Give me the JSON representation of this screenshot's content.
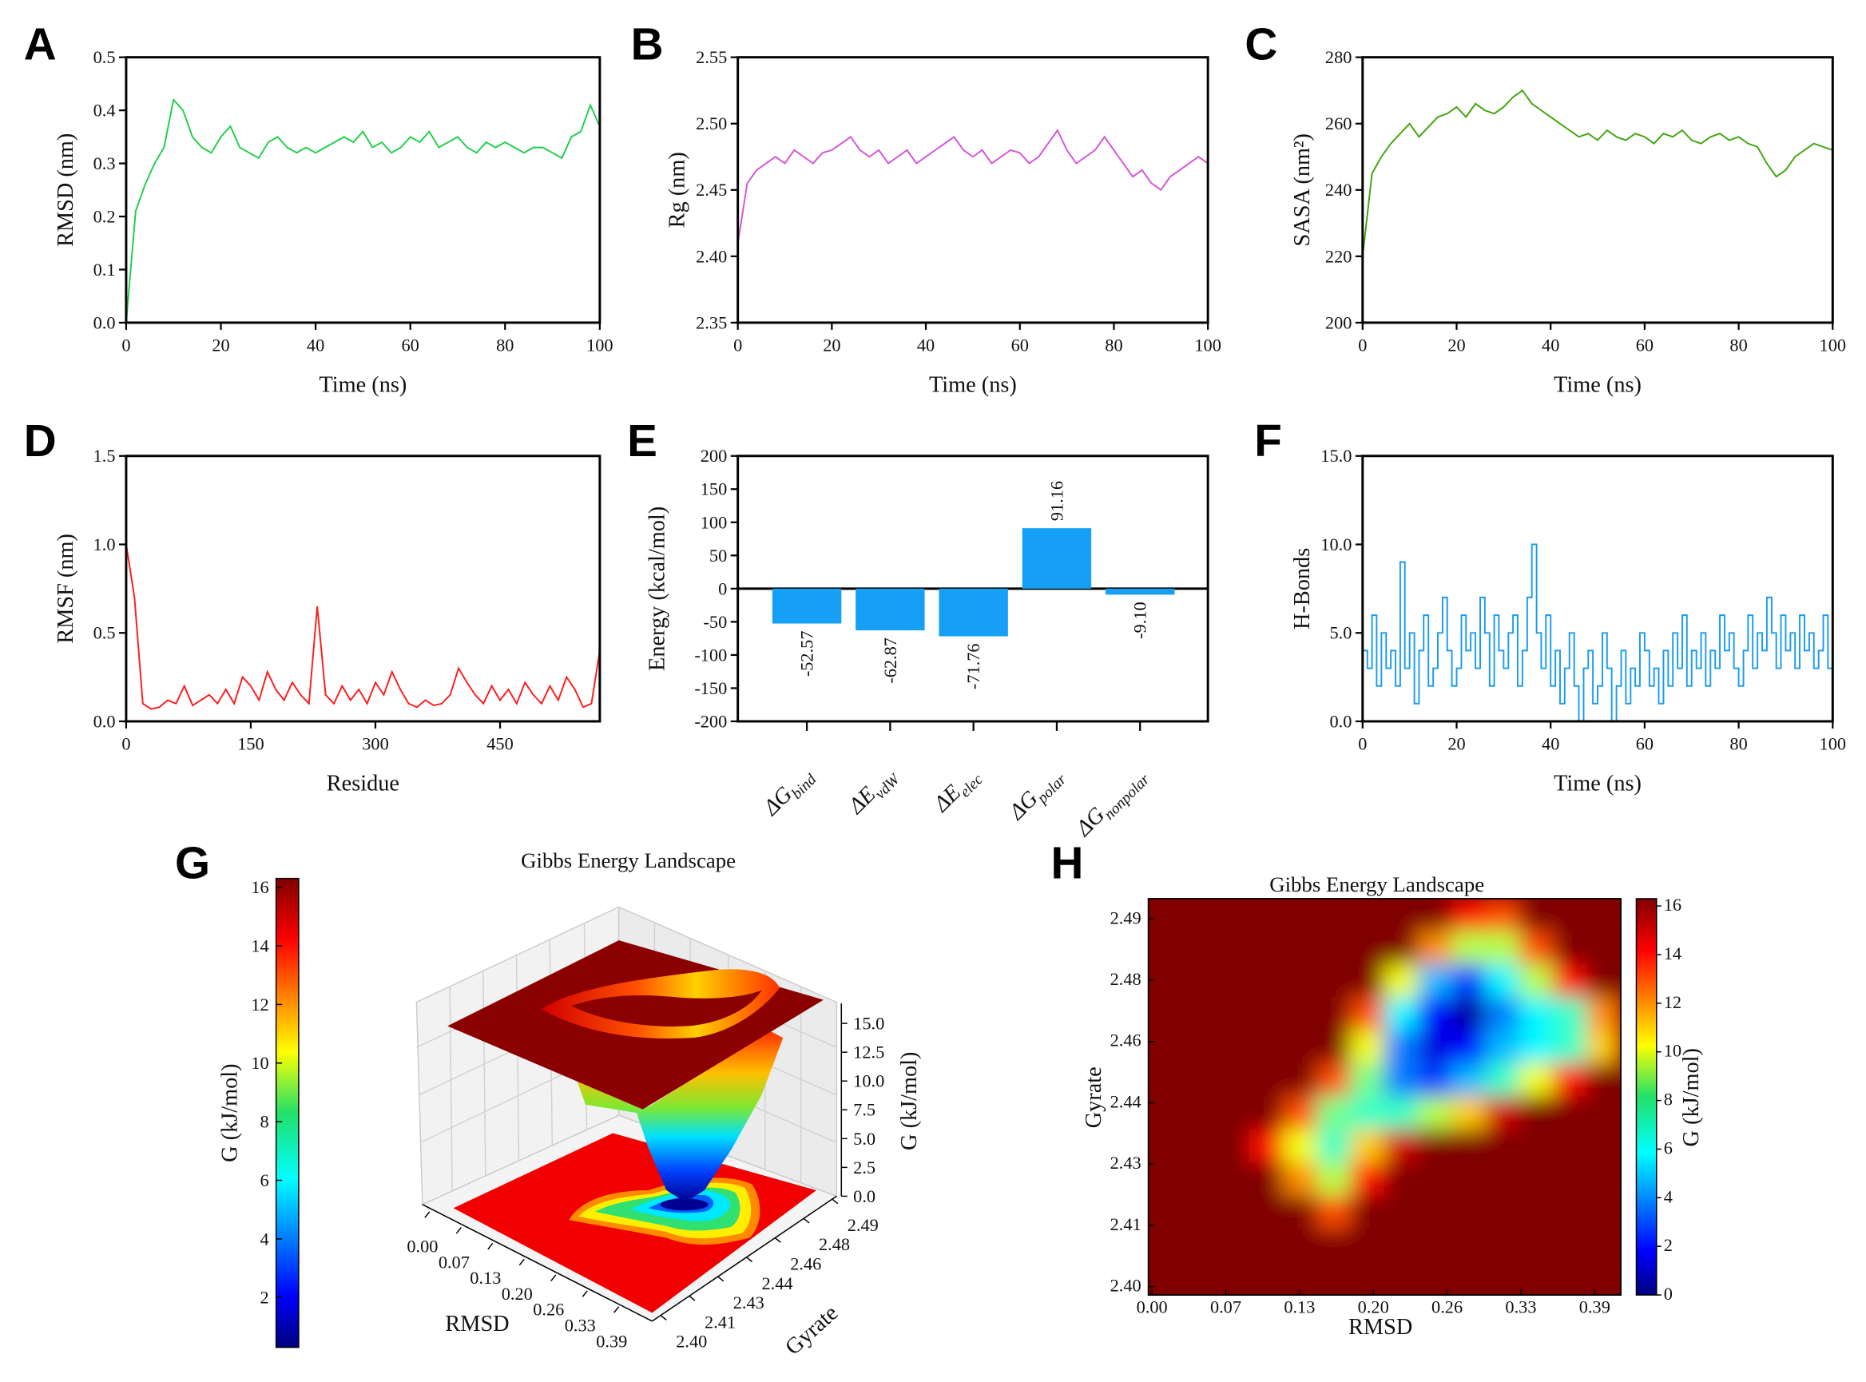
{
  "panel_letters": [
    "A",
    "B",
    "C",
    "D",
    "E",
    "F",
    "G",
    "H"
  ],
  "colors": {
    "rmsd": "#1fce4a",
    "rg": "#d452d8",
    "sasa": "#3ea50c",
    "rmsf": "#ff1a1a",
    "energy": "#16a0f5",
    "hbond": "#1a9bf0"
  },
  "chart_data": [
    {
      "id": "A",
      "type": "line",
      "xlabel": "Time (ns)",
      "ylabel": "RMSD (nm)",
      "xlim": [
        0,
        100
      ],
      "ylim": [
        0,
        0.5
      ],
      "xticks": [
        0,
        20,
        40,
        60,
        80,
        100
      ],
      "yticks": [
        "0.0",
        "0.1",
        "0.2",
        "0.3",
        "0.4",
        "0.5"
      ],
      "x_range": [
        0,
        100
      ],
      "values": [
        0.0,
        0.21,
        0.26,
        0.3,
        0.33,
        0.42,
        0.4,
        0.35,
        0.33,
        0.32,
        0.35,
        0.37,
        0.33,
        0.32,
        0.31,
        0.34,
        0.35,
        0.33,
        0.32,
        0.33,
        0.32,
        0.33,
        0.34,
        0.35,
        0.34,
        0.36,
        0.33,
        0.34,
        0.32,
        0.33,
        0.35,
        0.34,
        0.36,
        0.33,
        0.34,
        0.35,
        0.33,
        0.32,
        0.34,
        0.33,
        0.34,
        0.33,
        0.32,
        0.33,
        0.33,
        0.32,
        0.31,
        0.35,
        0.36,
        0.41,
        0.37
      ]
    },
    {
      "id": "B",
      "type": "line",
      "xlabel": "Time (ns)",
      "ylabel": "Rg (nm)",
      "xlim": [
        0,
        100
      ],
      "ylim": [
        2.35,
        2.55
      ],
      "xticks": [
        0,
        20,
        40,
        60,
        80,
        100
      ],
      "yticks": [
        "2.35",
        "2.40",
        "2.45",
        "2.50",
        "2.55"
      ],
      "x_range": [
        0,
        100
      ],
      "values": [
        2.41,
        2.455,
        2.465,
        2.47,
        2.475,
        2.47,
        2.48,
        2.475,
        2.47,
        2.478,
        2.48,
        2.485,
        2.49,
        2.48,
        2.475,
        2.48,
        2.47,
        2.475,
        2.48,
        2.47,
        2.475,
        2.48,
        2.485,
        2.49,
        2.48,
        2.475,
        2.48,
        2.47,
        2.475,
        2.48,
        2.478,
        2.47,
        2.475,
        2.485,
        2.495,
        2.48,
        2.47,
        2.475,
        2.48,
        2.49,
        2.48,
        2.47,
        2.46,
        2.465,
        2.455,
        2.45,
        2.46,
        2.465,
        2.47,
        2.475,
        2.47
      ]
    },
    {
      "id": "C",
      "type": "line",
      "xlabel": "Time (ns)",
      "ylabel": "SASA (nm²)",
      "xlim": [
        0,
        100
      ],
      "ylim": [
        200,
        280
      ],
      "xticks": [
        0,
        20,
        40,
        60,
        80,
        100
      ],
      "yticks": [
        "200",
        "220",
        "240",
        "260",
        "280"
      ],
      "x_range": [
        0,
        100
      ],
      "values": [
        220,
        245,
        250,
        254,
        257,
        260,
        256,
        259,
        262,
        263,
        265,
        262,
        266,
        264,
        263,
        265,
        268,
        270,
        266,
        264,
        262,
        260,
        258,
        256,
        257,
        255,
        258,
        256,
        255,
        257,
        256,
        254,
        257,
        256,
        258,
        255,
        254,
        256,
        257,
        255,
        256,
        254,
        253,
        248,
        244,
        246,
        250,
        252,
        254,
        253,
        252
      ]
    },
    {
      "id": "D",
      "type": "line",
      "xlabel": "Residue",
      "ylabel": "RMSF (nm)",
      "xlim": [
        0,
        570
      ],
      "ylim": [
        0,
        1.5
      ],
      "xticks": [
        0,
        150,
        300,
        450
      ],
      "yticks": [
        "0.0",
        "0.5",
        "1.0",
        "1.5"
      ],
      "x_range": [
        0,
        570
      ],
      "values": [
        1.0,
        0.7,
        0.1,
        0.07,
        0.08,
        0.12,
        0.1,
        0.2,
        0.09,
        0.12,
        0.15,
        0.1,
        0.18,
        0.1,
        0.25,
        0.2,
        0.12,
        0.28,
        0.18,
        0.12,
        0.22,
        0.15,
        0.1,
        0.65,
        0.15,
        0.1,
        0.2,
        0.12,
        0.18,
        0.1,
        0.22,
        0.15,
        0.28,
        0.18,
        0.1,
        0.08,
        0.12,
        0.09,
        0.1,
        0.15,
        0.3,
        0.22,
        0.15,
        0.1,
        0.2,
        0.12,
        0.18,
        0.1,
        0.22,
        0.15,
        0.1,
        0.2,
        0.12,
        0.25,
        0.18,
        0.08,
        0.1,
        0.4
      ]
    },
    {
      "id": "E",
      "type": "bar",
      "ylabel": "Energy (kcal/mol)",
      "ylim": [
        -200,
        200
      ],
      "yticks": [
        "-200",
        "-150",
        "-100",
        "-50",
        "0",
        "50",
        "100",
        "150",
        "200"
      ],
      "categories": [
        {
          "main": "ΔG",
          "sub": "bind"
        },
        {
          "main": "ΔE",
          "sub": "vdW"
        },
        {
          "main": "ΔE",
          "sub": "elec"
        },
        {
          "main": "ΔG",
          "sub": "polar"
        },
        {
          "main": "ΔG",
          "sub": "nonpolar"
        }
      ],
      "values": [
        -52.57,
        -62.87,
        -71.76,
        91.16,
        -9.1
      ],
      "labels": [
        "-52.57",
        "-62.87",
        "-71.76",
        "91.16",
        "-9.10"
      ]
    },
    {
      "id": "F",
      "type": "line",
      "xlabel": "Time (ns)",
      "ylabel": "H-Bonds",
      "xlim": [
        0,
        100
      ],
      "ylim": [
        0,
        15
      ],
      "xticks": [
        0,
        20,
        40,
        60,
        80,
        100
      ],
      "yticks": [
        "0.0",
        "5.0",
        "10.0",
        "15.0"
      ],
      "x_range": [
        0,
        100
      ],
      "values": [
        4,
        3,
        6,
        2,
        5,
        3,
        4,
        2,
        9,
        3,
        5,
        1,
        4,
        6,
        2,
        3,
        5,
        7,
        4,
        2,
        3,
        6,
        4,
        5,
        3,
        7,
        5,
        2,
        6,
        4,
        3,
        5,
        6,
        2,
        4,
        7,
        10,
        5,
        3,
        6,
        2,
        4,
        1,
        3,
        5,
        2,
        0,
        3,
        4,
        1,
        2,
        5,
        3,
        0,
        2,
        4,
        1,
        3,
        2,
        5,
        4,
        2,
        3,
        1,
        4,
        2,
        5,
        3,
        6,
        2,
        4,
        3,
        5,
        2,
        4,
        3,
        6,
        4,
        5,
        3,
        2,
        4,
        6,
        3,
        5,
        4,
        7,
        5,
        3,
        6,
        4,
        5,
        3,
        6,
        4,
        5,
        3,
        4,
        6,
        3,
        4
      ]
    },
    {
      "id": "G",
      "type": "surface3d",
      "title": "Gibbs Energy Landscape",
      "xlabel": "RMSD",
      "ylabel": "Gyrate",
      "zlabel": "G (kJ/mol)",
      "xticks": [
        "0.00",
        "0.07",
        "0.13",
        "0.20",
        "0.26",
        "0.33",
        "0.39"
      ],
      "yticks": [
        "2.40",
        "2.41",
        "2.43",
        "2.44",
        "2.46",
        "2.48",
        "2.49"
      ],
      "zticks": [
        "0.0",
        "2.5",
        "5.0",
        "7.5",
        "10.0",
        "12.5",
        "15.0"
      ],
      "colorbar": {
        "label": "G (kJ/mol)",
        "ticks": [
          "2",
          "4",
          "6",
          "8",
          "10",
          "12",
          "14",
          "16"
        ],
        "range": [
          0.3,
          16.3
        ]
      }
    },
    {
      "id": "H",
      "type": "heatmap",
      "title": "Gibbs Energy Landscape",
      "xlabel": "RMSD",
      "ylabel": "Gyrate",
      "xticks": [
        "0.00",
        "0.07",
        "0.13",
        "0.20",
        "0.26",
        "0.33",
        "0.39"
      ],
      "yticks": [
        "2.49",
        "2.48",
        "2.46",
        "2.44",
        "2.43",
        "2.41",
        "2.40"
      ],
      "x_range": [
        0,
        0.4
      ],
      "y_range": [
        2.4,
        2.492
      ],
      "colorbar": {
        "label": "G (kJ/mol)",
        "ticks": [
          "0",
          "2",
          "4",
          "6",
          "8",
          "10",
          "12",
          "14",
          "16"
        ],
        "range": [
          0,
          16.3
        ]
      },
      "matrix_rows_top_to_bottom": [
        [
          16.3,
          16.3,
          16.3,
          16.3,
          16.3,
          16.3,
          16.3,
          16.3,
          16.3,
          14,
          13,
          16.3,
          16.3,
          16.3
        ],
        [
          16.3,
          16.3,
          16.3,
          16.3,
          16.3,
          16.3,
          16.3,
          16.3,
          12,
          9,
          9,
          13,
          16.3,
          16.3
        ],
        [
          16.3,
          16.3,
          16.3,
          16.3,
          16.3,
          16.3,
          16.3,
          10,
          5,
          3,
          6,
          9,
          14,
          16.3
        ],
        [
          16.3,
          16.3,
          16.3,
          16.3,
          16.3,
          16.3,
          13,
          6,
          2,
          0.5,
          4,
          6,
          7,
          12
        ],
        [
          16.3,
          16.3,
          16.3,
          16.3,
          16.3,
          16.3,
          10,
          4,
          1.5,
          2,
          5,
          6,
          7,
          11
        ],
        [
          16.3,
          16.3,
          16.3,
          16.3,
          16.3,
          13,
          8,
          4,
          3,
          5,
          7,
          10,
          14,
          16.3
        ],
        [
          16.3,
          16.3,
          16.3,
          16.3,
          13,
          8,
          7,
          7,
          9,
          11,
          15,
          16.3,
          16.3,
          16.3
        ],
        [
          16.3,
          16.3,
          16.3,
          14,
          10,
          7,
          11,
          15,
          16.3,
          16.3,
          16.3,
          16.3,
          16.3,
          16.3
        ],
        [
          16.3,
          16.3,
          16.3,
          16.3,
          12,
          9,
          14,
          16.3,
          16.3,
          16.3,
          16.3,
          16.3,
          16.3,
          16.3
        ],
        [
          16.3,
          16.3,
          16.3,
          16.3,
          16.3,
          13,
          16.3,
          16.3,
          16.3,
          16.3,
          16.3,
          16.3,
          16.3,
          16.3
        ],
        [
          16.3,
          16.3,
          16.3,
          16.3,
          16.3,
          16.3,
          16.3,
          16.3,
          16.3,
          16.3,
          16.3,
          16.3,
          16.3,
          16.3
        ],
        [
          16.3,
          16.3,
          16.3,
          16.3,
          16.3,
          16.3,
          16.3,
          16.3,
          16.3,
          16.3,
          16.3,
          16.3,
          16.3,
          16.3
        ]
      ]
    }
  ]
}
